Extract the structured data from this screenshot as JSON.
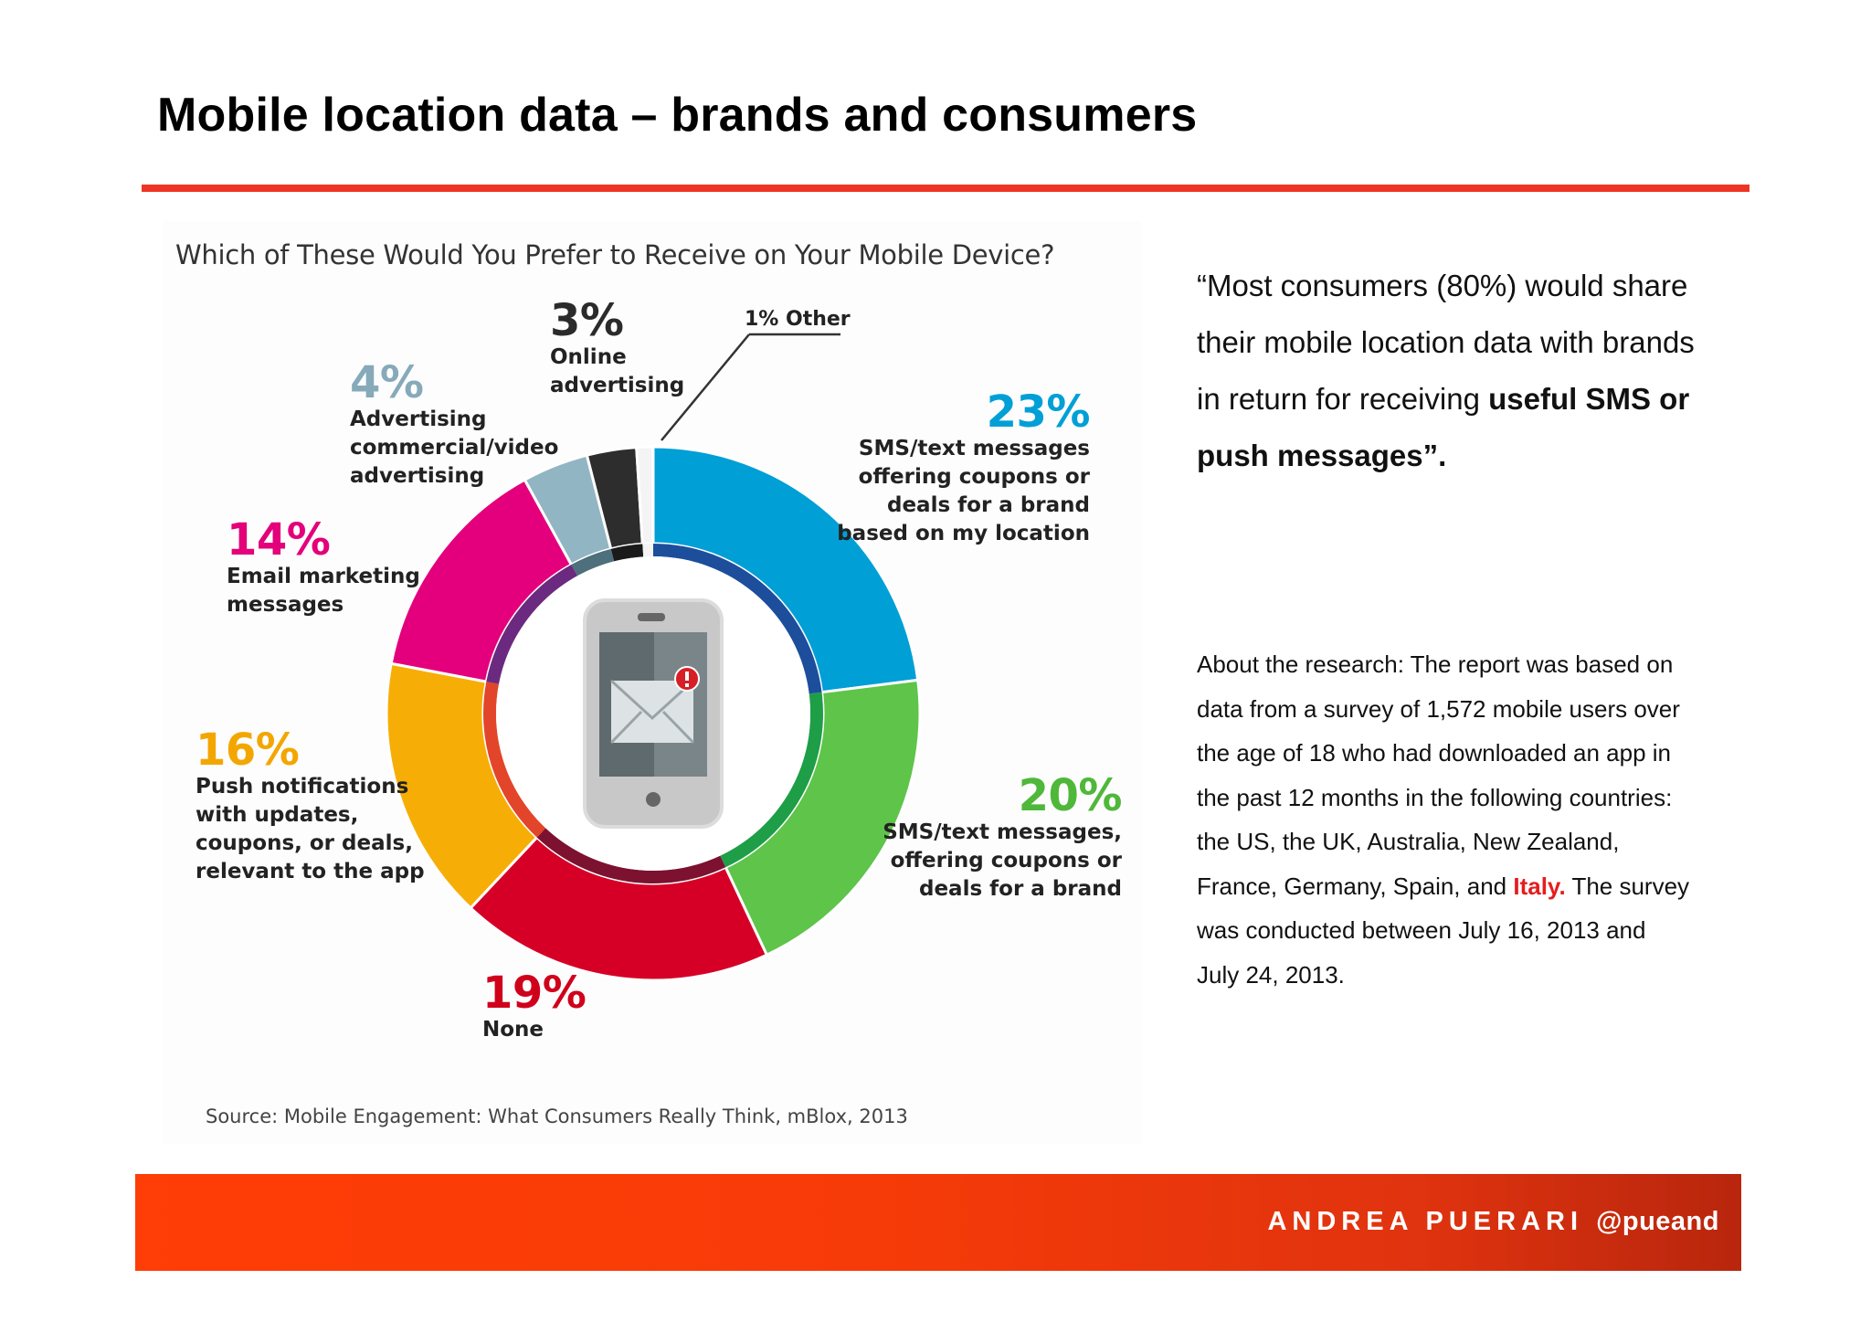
{
  "slide": {
    "title": "Mobile location data – brands and consumers",
    "accent_color": "#ee3524"
  },
  "chart_data": {
    "type": "pie",
    "title": "Which of These Would You Prefer to Receive on Your Mobile Device?",
    "source": "Source: Mobile Engagement: What Consumers Really Think, mBlox, 2013",
    "slices": [
      {
        "pct_label": "23%",
        "value": 23,
        "label": "SMS/text messages\noffering coupons or\ndeals for a brand\nbased on my location",
        "color": "#009fd6",
        "inner_color": "#1d4e9c"
      },
      {
        "pct_label": "20%",
        "value": 20,
        "label": "SMS/text messages,\noffering coupons or\ndeals for a brand",
        "color": "#5ec44a",
        "inner_color": "#1e9e47"
      },
      {
        "pct_label": "19%",
        "value": 19,
        "label": "None",
        "color": "#d60027",
        "inner_color": "#7c1230"
      },
      {
        "pct_label": "16%",
        "value": 16,
        "label": "Push notifications\nwith updates,\ncoupons, or deals,\nrelevant to the app",
        "color": "#f6ae06",
        "inner_color": "#e3452a"
      },
      {
        "pct_label": "14%",
        "value": 14,
        "label": "Email marketing\nmessages",
        "color": "#e4007c",
        "inner_color": "#6b2a7f"
      },
      {
        "pct_label": "4%",
        "value": 4,
        "label": "Advertising\ncommercial/video\nadvertising",
        "color": "#92b5c3",
        "inner_color": "#4e6f7c"
      },
      {
        "pct_label": "3%",
        "value": 3,
        "label": "Online\nadvertising",
        "color": "#2d2d2d",
        "inner_color": "#1a1a1a"
      },
      {
        "pct_label": "1%",
        "value": 1,
        "label": "Other",
        "color": "#f4f4f4",
        "inner_color": "#f4f4f4"
      }
    ],
    "other_label": "1% Other",
    "center_icon": "phone-with-envelope-notification-icon"
  },
  "quote": {
    "text": "“Most consumers (80%) would share their mobile location data with brands in return for receiving ",
    "bold": "useful SMS or push messages”."
  },
  "about": {
    "text_before": "About the research: The report was based on data from a survey of 1,572 mobile users over the age of 18 who had downloaded an app in the past 12 months in the following countries: the US, the UK, Australia, New Zealand, France, Germany, Spain, and ",
    "highlight": "Italy.",
    "text_after": " The survey was conducted between July 16, 2013 and July 24, 2013.",
    "highlight_color": "#e41e1e"
  },
  "footer": {
    "name": "ANDREA PUERARI",
    "handle": "@pueand"
  }
}
